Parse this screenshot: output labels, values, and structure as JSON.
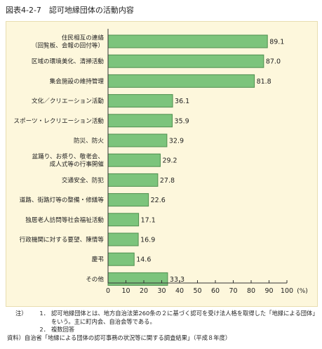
{
  "figure_title": "図表4-2-7　認可地縁団体の活動内容",
  "accent_colors": {
    "bar_fill": "#7cc47c",
    "bar_stroke": "#4f8f4f",
    "panel_bg": "#fdf7dc"
  },
  "chart_data": {
    "type": "bar",
    "orientation": "horizontal",
    "categories": [
      "住民相互の連絡\n（回覧板、会報の回付等）",
      "区域の環境美化、清掃活動",
      "集会施設の維持管理",
      "文化／クリエーション活動",
      "スポーツ・レクリエーション活動",
      "防災、防火",
      "盆踊り、お祭り、敬老会、\n成人式等の行事開催",
      "交通安全、防犯",
      "道路、街路灯等の整備・修繕等",
      "独居老人訪問等社会福祉活動",
      "行政機関に対する要望、陳情等",
      "慶弔",
      "その他"
    ],
    "values": [
      89.1,
      87.0,
      81.8,
      36.1,
      35.9,
      32.9,
      29.2,
      27.8,
      22.6,
      17.1,
      16.9,
      14.6,
      33.3
    ],
    "value_labels": [
      "89.1",
      "87.0",
      "81.8",
      "36.1",
      "35.9",
      "32.9",
      "29.2",
      "27.8",
      "22.6",
      "17.1",
      "16.9",
      "14.6",
      "33.3"
    ],
    "xlim": [
      0,
      100
    ],
    "xticks": [
      "0",
      "10",
      "20",
      "30",
      "40",
      "50",
      "60",
      "70",
      "80",
      "90",
      "100"
    ],
    "x_unit": "(%)",
    "grid": false,
    "legend": false
  },
  "notes": {
    "label": "注）",
    "items": [
      {
        "num": "1．",
        "text": "認可地縁団体とは、地方自治法第260条の２に基づく認可を受け法人格を取得した「地縁による団体」をいう。主に町内会、自治会等である。"
      },
      {
        "num": "2．",
        "text": "複数回答"
      }
    ],
    "source_label": "資料）",
    "source_text": "自治省「地縁による団体の認可事務の状況等に関する調査結果」（平成８年度）"
  }
}
